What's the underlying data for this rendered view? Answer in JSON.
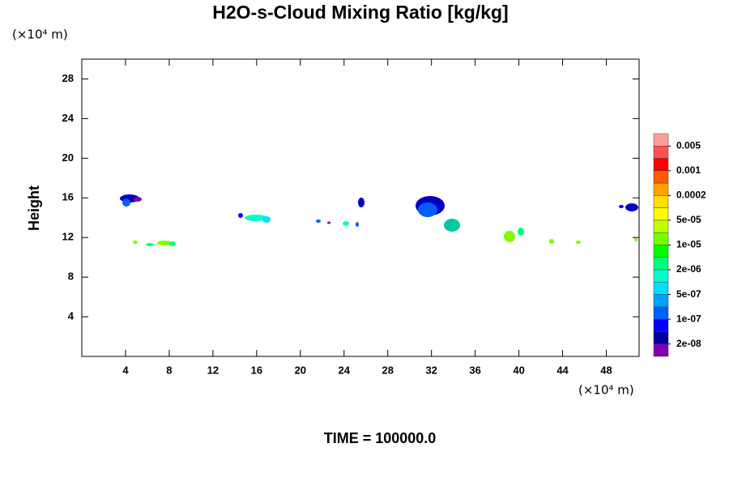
{
  "chart_data": {
    "type": "contour",
    "title": "H2O-s-Cloud Mixing Ratio [kg/kg]",
    "y_label": "Height",
    "y_unit": "(×10⁴ m)",
    "x_unit": "(×10⁴ m)",
    "annotation": "TIME = 100000.0",
    "xlim": [
      0,
      51
    ],
    "ylim": [
      0,
      30
    ],
    "xticks": [
      4,
      8,
      12,
      16,
      20,
      24,
      28,
      32,
      36,
      40,
      44,
      48
    ],
    "yticks": [
      4,
      8,
      12,
      16,
      20,
      24,
      28
    ],
    "colorbar": {
      "colors": [
        "#ff9c9c",
        "#ff5050",
        "#ff0000",
        "#ff5a00",
        "#ffa000",
        "#ffe000",
        "#ffff00",
        "#c0ff00",
        "#78ff00",
        "#00ff00",
        "#00ff80",
        "#00ffc8",
        "#00e0ff",
        "#00a0ff",
        "#0060ff",
        "#0000ff",
        "#0000a0",
        "#8000b0"
      ],
      "levels": [
        0.005,
        0.001,
        0.0002,
        {
          "value": 5e-05,
          "label": "5e-05"
        },
        {
          "value": 1e-05,
          "label": "1e-05"
        },
        {
          "value": 2e-06,
          "label": "2e-06"
        },
        {
          "value": 5e-07,
          "label": "5e-07"
        },
        {
          "value": 1e-07,
          "label": "1e-07"
        },
        {
          "value": 2e-08,
          "label": "2e-08"
        }
      ]
    }
  }
}
